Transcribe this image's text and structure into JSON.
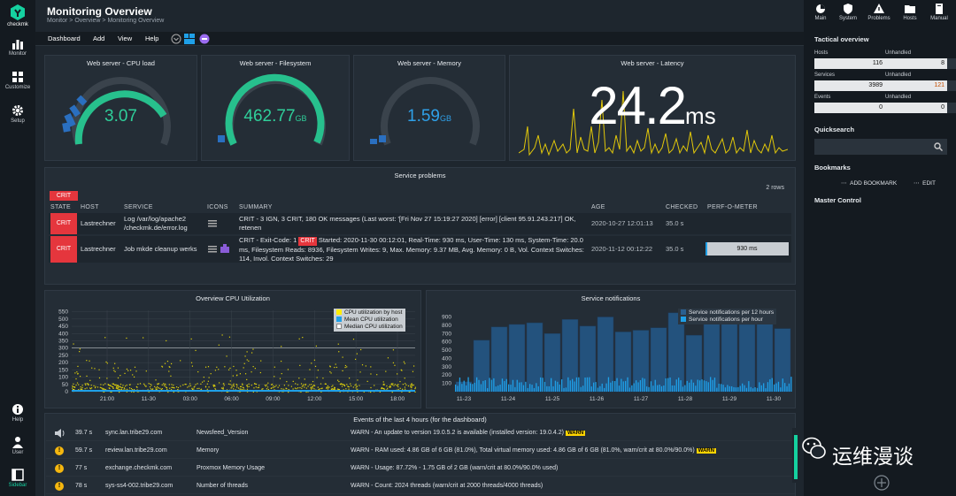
{
  "sidebar": {
    "brand": "checkmk",
    "items": [
      {
        "label": "Monitor",
        "icon": "bar-chart-icon"
      },
      {
        "label": "Customize",
        "icon": "grid-icon"
      },
      {
        "label": "Setup",
        "icon": "gear-icon"
      }
    ],
    "bottom": [
      {
        "label": "Help",
        "icon": "info-icon"
      },
      {
        "label": "User",
        "icon": "user-icon"
      },
      {
        "label": "Sidebar",
        "icon": "sidebar-icon"
      }
    ]
  },
  "header": {
    "title": "Monitoring Overview",
    "breadcrumb": "Monitor > Overview > Monitoring Overview"
  },
  "menubar": {
    "items": [
      "Dashboard",
      "Add",
      "View",
      "Help"
    ]
  },
  "gauges": [
    {
      "title": "Web server - CPU load",
      "value": "3.07",
      "unit": "",
      "fill": 0.82
    },
    {
      "title": "Web server - Filesystem",
      "value": "462.77",
      "unit": "GB",
      "fill": 0.97
    },
    {
      "title": "Web server - Memory",
      "value": "1.59",
      "unit": "GB",
      "fill": 0.0
    }
  ],
  "latency": {
    "title": "Web server - Latency",
    "value": "24.2",
    "unit": "ms"
  },
  "problems": {
    "title": "Service problems",
    "rows_count": "2 rows",
    "filter_badge": "CRIT",
    "columns": [
      "STATE",
      "HOST",
      "SERVICE",
      "ICONS",
      "SUMMARY",
      "AGE",
      "CHECKED",
      "PERF-O-METER"
    ],
    "rows": [
      {
        "state": "CRIT",
        "host": "Lastrechner",
        "service": "Log /var/log/apache2 /checkmk.de/error.log",
        "summary": "CRIT - 3 IGN, 3 CRIT, 180 OK messages (Last worst: '[Fri Nov 27 15:19:27 2020] [error] [client 95.91.243.217] OK, retenen",
        "age": "2020-10-27 12:01:13",
        "checked": "35.0 s",
        "perf": ""
      },
      {
        "state": "CRIT",
        "host": "Lastrechner",
        "service": "Job mkde cleanup werks",
        "summary_prefix": "CRIT - Exit-Code: 1",
        "summary_badge": "CRIT",
        "summary": "Started: 2020-11-30 00:12:01, Real-Time: 930 ms, User-Time: 130 ms, System-Time: 20.0 ms, Filesystem Reads: 8936, Filesystem Writes: 9, Max. Memory: 9.37 MB, Avg. Memory: 0 B, Vol. Context Switches: 114, Invol. Context Switches: 29",
        "age": "2020-11-12 00:12:22",
        "checked": "35.0 s",
        "perf": "930 ms"
      }
    ]
  },
  "cpu_chart_title": "Overview CPU Utilization",
  "notif_chart_title": "Service notifications",
  "chart_data": [
    {
      "type": "scatter",
      "title": "Overview CPU Utilization",
      "y_ticks": [
        "550",
        "500",
        "450",
        "400",
        "350",
        "300",
        "250",
        "200",
        "150",
        "100",
        "50",
        "0"
      ],
      "x_ticks": [
        "21:00",
        "11-30",
        "03:00",
        "06:00",
        "09:00",
        "12:00",
        "15:00",
        "18:00"
      ],
      "ylim": [
        0,
        560
      ],
      "legend": [
        "CPU utilization by host",
        "Mean CPU utilization",
        "Median CPU utilization"
      ],
      "legend_colors": [
        "#ffee00",
        "#1fa0e8",
        "#ffffff"
      ],
      "legend_position": "top-right"
    },
    {
      "type": "bar",
      "title": "Service notifications",
      "y_ticks": [
        "900",
        "800",
        "700",
        "600",
        "500",
        "400",
        "300",
        "200",
        "100"
      ],
      "x_ticks": [
        "11-23",
        "11-24",
        "11-25",
        "11-26",
        "11-27",
        "11-28",
        "11-29",
        "11-30"
      ],
      "ylim": [
        0,
        980
      ],
      "series": [
        {
          "name": "Service notifications per 12 hours",
          "color": "#2a5f8f",
          "values": [
            120,
            620,
            780,
            810,
            830,
            700,
            870,
            790,
            900,
            720,
            740,
            770,
            950,
            680,
            840,
            900,
            810,
            880,
            760
          ]
        },
        {
          "name": "Service notifications per hour",
          "color": "#1fa0e8"
        }
      ],
      "legend_position": "top-right"
    }
  ],
  "events": {
    "title": "Events of the last 4 hours (for the dashboard)",
    "rows": [
      {
        "icon": "speaker-icon",
        "age": "39.7 s",
        "host": "sync.lan.tribe29.com",
        "service": "Newsfeed_Version",
        "text": "WARN - An update to version 19.0.5.2 is available (installed version: 19.0.4.2)",
        "badge": "WARN"
      },
      {
        "icon": "warning-icon",
        "age": "59.7 s",
        "host": "review.lan.tribe29.com",
        "service": "Memory",
        "text": "WARN - RAM used: 4.86 GB of 6 GB (81.0%), Total virtual memory used: 4.86 GB of 6 GB (81.0%, warn/crit at 80.0%/90.0%)",
        "badge": "WARN"
      },
      {
        "icon": "warning-icon",
        "age": "77 s",
        "host": "exchange.checkmk.com",
        "service": "Proxmox Memory Usage",
        "text": "WARN - Usage: 87.72% - 1.75 GB of 2 GB (warn/crit at 80.0%/90.0% used)",
        "badge": ""
      },
      {
        "icon": "warning-icon",
        "age": "78 s",
        "host": "sys-ss4-002.tribe29.com",
        "service": "Number of threads",
        "text": "WARN - Count: 2024 threads (warn/crit at 2000 threads/4000 threads)",
        "badge": ""
      }
    ]
  },
  "right": {
    "top": [
      {
        "label": "Main",
        "icon": "pie-icon"
      },
      {
        "label": "System",
        "icon": "shield-icon"
      },
      {
        "label": "Problems",
        "icon": "warning-icon"
      },
      {
        "label": "Hosts",
        "icon": "folder-icon"
      },
      {
        "label": "Manual",
        "icon": "book-icon"
      }
    ],
    "tactical_title": "Tactical overview",
    "tactical": [
      {
        "label": "Hosts",
        "value": "116",
        "unhandled_label": "Unhandled",
        "unhandled": "8"
      },
      {
        "label": "Services",
        "value": "3989",
        "unhandled_label": "Unhandled",
        "unhandled": "121"
      },
      {
        "label": "Events",
        "value": "0",
        "unhandled_label": "Unhandled",
        "unhandled": "0"
      }
    ],
    "quicksearch_title": "Quicksearch",
    "bookmarks_title": "Bookmarks",
    "add_bookmark": "ADD BOOKMARK",
    "edit": "EDIT",
    "master_control": "Master Control"
  },
  "watermark": "运维漫谈"
}
